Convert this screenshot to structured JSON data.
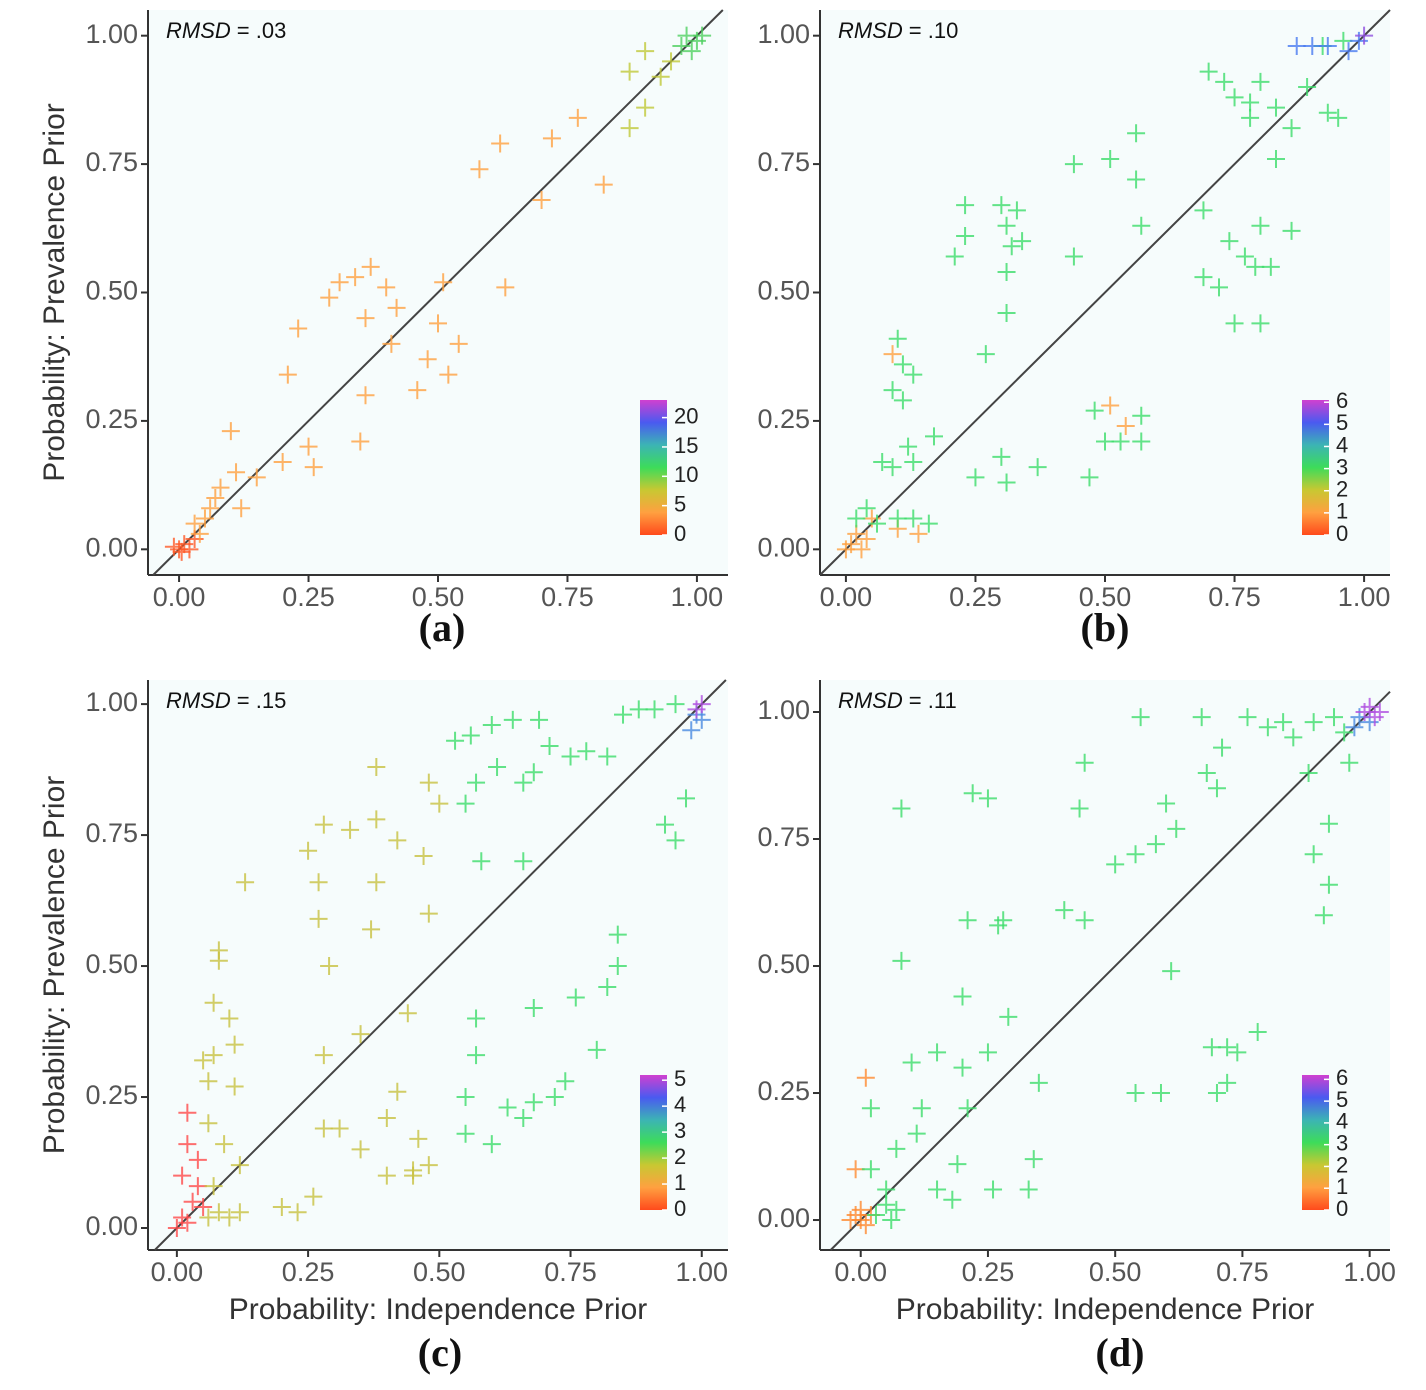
{
  "chart_data": [
    {
      "type": "scatter",
      "panel_label": "(a)",
      "annotation_var": "RMSD",
      "annotation": "= .03",
      "ylabel": "Probability: Prevalence Prior",
      "xlim": [
        -0.06,
        1.06
      ],
      "ylim": [
        -0.05,
        1.05
      ],
      "xticks": [
        {
          "value": 0,
          "label": "0.00"
        },
        {
          "value": 0.25,
          "label": "0.25"
        },
        {
          "value": 0.5,
          "label": "0.50"
        },
        {
          "value": 0.75,
          "label": "0.75"
        },
        {
          "value": 1,
          "label": "1.00"
        }
      ],
      "yticks": [
        {
          "value": 0,
          "label": "0.00"
        },
        {
          "value": 0.25,
          "label": "0.25"
        },
        {
          "value": 0.5,
          "label": "0.50"
        },
        {
          "value": 0.75,
          "label": "0.75"
        },
        {
          "value": 1,
          "label": "1.00"
        }
      ],
      "identity_line": true,
      "colorbar": {
        "lim": [
          0,
          23
        ],
        "ticks": [
          0,
          5,
          10,
          15,
          20
        ],
        "colors": [
          "#ff4a1c",
          "#ffa040",
          "#c8c832",
          "#3ddc5a",
          "#3cb4b4",
          "#4a5af0",
          "#d040d0"
        ]
      },
      "series": [
        {
          "color": "#ff5a28",
          "x": [
            0,
            0.01,
            -0.01,
            0.02,
            0.03,
            0.005
          ],
          "values": [
            0,
            0.01,
            0.005,
            0,
            0.02,
            -0.005
          ]
        },
        {
          "color": "#ffa040",
          "x": [
            0.04,
            0.05,
            0.06,
            0.07,
            0.03,
            0.08,
            0.1,
            0.11,
            0.12,
            0.15,
            0.21,
            0.23,
            0.2,
            0.25,
            0.26,
            0.29,
            0.31,
            0.34,
            0.37,
            0.4,
            0.36,
            0.42,
            0.41,
            0.36,
            0.35,
            0.46,
            0.48,
            0.51,
            0.5,
            0.54,
            0.52,
            0.58,
            0.62,
            0.63,
            0.7,
            0.72,
            0.77,
            0.82
          ],
          "values": [
            0.03,
            0.06,
            0.08,
            0.1,
            0.05,
            0.12,
            0.23,
            0.15,
            0.08,
            0.14,
            0.34,
            0.43,
            0.17,
            0.2,
            0.16,
            0.49,
            0.52,
            0.53,
            0.55,
            0.51,
            0.45,
            0.47,
            0.4,
            0.3,
            0.21,
            0.31,
            0.37,
            0.52,
            0.44,
            0.4,
            0.34,
            0.74,
            0.79,
            0.51,
            0.68,
            0.8,
            0.84,
            0.71
          ]
        },
        {
          "color": "#c0c838",
          "x": [
            0.87,
            0.87,
            0.9,
            0.93,
            0.95,
            0.9
          ],
          "values": [
            0.93,
            0.82,
            0.86,
            0.92,
            0.95,
            0.97
          ]
        },
        {
          "color": "#50d060",
          "x": [
            0.97,
            0.98,
            1,
            0.99,
            1.01
          ],
          "values": [
            0.98,
            1,
            0.99,
            0.97,
            1
          ]
        }
      ]
    },
    {
      "type": "scatter",
      "panel_label": "(b)",
      "annotation_var": "RMSD",
      "annotation": "= .10",
      "xlim": [
        -0.05,
        1.05
      ],
      "ylim": [
        -0.05,
        1.05
      ],
      "xticks": [
        {
          "value": 0,
          "label": "0.00"
        },
        {
          "value": 0.25,
          "label": "0.25"
        },
        {
          "value": 0.5,
          "label": "0.50"
        },
        {
          "value": 0.75,
          "label": "0.75"
        },
        {
          "value": 1,
          "label": "1.00"
        }
      ],
      "yticks": [
        {
          "value": 0,
          "label": "0.00"
        },
        {
          "value": 0.25,
          "label": "0.25"
        },
        {
          "value": 0.5,
          "label": "0.50"
        },
        {
          "value": 0.75,
          "label": "0.75"
        },
        {
          "value": 1,
          "label": "1.00"
        }
      ],
      "identity_line": true,
      "colorbar": {
        "lim": [
          0,
          6.1
        ],
        "ticks": [
          0,
          1,
          2,
          3,
          4,
          5,
          6
        ],
        "colors": [
          "#ff4a1c",
          "#ffa040",
          "#c8c832",
          "#3ddc5a",
          "#3cb4b4",
          "#4a5af0",
          "#d040d0"
        ]
      },
      "series": [
        {
          "color": "#ffa040",
          "x": [
            0,
            0.01,
            0.02,
            0.04,
            0.05,
            0.03,
            0.1,
            0.14,
            0.51,
            0.54,
            0.09
          ],
          "values": [
            0,
            0.01,
            0.03,
            0.02,
            0.06,
            0,
            0.04,
            0.03,
            0.28,
            0.24,
            0.38
          ]
        },
        {
          "color": "#3ddc6a",
          "x": [
            0.02,
            0.04,
            0.06,
            0.07,
            0.09,
            0.1,
            0.13,
            0.16,
            0.1,
            0.11,
            0.13,
            0.09,
            0.11,
            0.12,
            0.13,
            0.17,
            0.21,
            0.23,
            0.23,
            0.27,
            0.25,
            0.3,
            0.31,
            0.32,
            0.34,
            0.31,
            0.33,
            0.31,
            0.3,
            0.31,
            0.37,
            0.44,
            0.44,
            0.48,
            0.47,
            0.5,
            0.51,
            0.53,
            0.56,
            0.56,
            0.57,
            0.57,
            0.57,
            0.69,
            0.7,
            0.73,
            0.75,
            0.78,
            0.8,
            0.74,
            0.77,
            0.79,
            0.82,
            0.8,
            0.75,
            0.8,
            0.69,
            0.72,
            0.86,
            0.83,
            0.86,
            0.89,
            0.93,
            0.95,
            0.92,
            0.96,
            0.78,
            0.83
          ],
          "values": [
            0.06,
            0.08,
            0.05,
            0.17,
            0.16,
            0.06,
            0.06,
            0.05,
            0.41,
            0.36,
            0.34,
            0.31,
            0.29,
            0.2,
            0.17,
            0.22,
            0.57,
            0.61,
            0.67,
            0.38,
            0.14,
            0.67,
            0.63,
            0.59,
            0.6,
            0.54,
            0.66,
            0.46,
            0.18,
            0.13,
            0.16,
            0.75,
            0.57,
            0.27,
            0.14,
            0.21,
            0.76,
            0.21,
            0.81,
            0.72,
            0.63,
            0.26,
            0.21,
            0.66,
            0.93,
            0.91,
            0.88,
            0.87,
            0.91,
            0.6,
            0.57,
            0.55,
            0.55,
            0.63,
            0.44,
            0.44,
            0.53,
            0.51,
            0.62,
            0.76,
            0.82,
            0.9,
            0.85,
            0.84,
            0.98,
            0.99,
            0.84,
            0.86
          ]
        },
        {
          "color": "#4a7af0",
          "x": [
            0.87,
            0.9,
            0.93,
            0.97,
            0.99
          ],
          "values": [
            0.98,
            0.98,
            0.98,
            0.97,
            0.99
          ]
        },
        {
          "color": "#9050e0",
          "x": [
            1
          ],
          "values": [
            1
          ]
        }
      ]
    },
    {
      "type": "scatter",
      "panel_label": "(c)",
      "annotation_var": "RMSD",
      "annotation": "= .15",
      "xlabel": "Probability: Independence Prior",
      "ylabel": "Probability: Prevalence Prior",
      "xlim": [
        -0.055,
        1.05
      ],
      "ylim": [
        -0.042,
        1.046
      ],
      "xticks": [
        {
          "value": 0,
          "label": "0.00"
        },
        {
          "value": 0.25,
          "label": "0.25"
        },
        {
          "value": 0.5,
          "label": "0.50"
        },
        {
          "value": 0.75,
          "label": "0.75"
        },
        {
          "value": 1,
          "label": "1.00"
        }
      ],
      "yticks": [
        {
          "value": 0,
          "label": "0.00"
        },
        {
          "value": 0.25,
          "label": "0.25"
        },
        {
          "value": 0.5,
          "label": "0.50"
        },
        {
          "value": 0.75,
          "label": "0.75"
        },
        {
          "value": 1,
          "label": "1.00"
        }
      ],
      "identity_line": true,
      "colorbar": {
        "lim": [
          0,
          5.2
        ],
        "ticks": [
          0,
          1,
          2,
          3,
          4,
          5
        ],
        "colors": [
          "#ff4a1c",
          "#ffa040",
          "#c8c832",
          "#3ddc5a",
          "#3cb4b4",
          "#4a5af0",
          "#d040d0"
        ]
      },
      "series": [
        {
          "color": "#ff4a4a",
          "x": [
            0,
            0.01,
            0.02,
            0.03,
            0.01,
            0.02,
            0.04,
            0.02,
            0.04,
            0.05
          ],
          "values": [
            0,
            0.02,
            0.01,
            0.05,
            0.1,
            0.16,
            0.13,
            0.22,
            0.08,
            0.04
          ]
        },
        {
          "color": "#c8c040",
          "x": [
            0.06,
            0.08,
            0.1,
            0.12,
            0.07,
            0.06,
            0.06,
            0.05,
            0.07,
            0.07,
            0.08,
            0.08,
            0.1,
            0.11,
            0.11,
            0.09,
            0.12,
            0.13,
            0.2,
            0.26,
            0.25,
            0.27,
            0.27,
            0.28,
            0.29,
            0.28,
            0.28,
            0.31,
            0.33,
            0.35,
            0.38,
            0.38,
            0.37,
            0.38,
            0.4,
            0.35,
            0.42,
            0.42,
            0.44,
            0.45,
            0.46,
            0.47,
            0.48,
            0.48,
            0.48,
            0.5,
            0.45,
            0.4,
            0.23
          ],
          "values": [
            0.02,
            0.03,
            0.02,
            0.03,
            0.08,
            0.2,
            0.28,
            0.32,
            0.33,
            0.43,
            0.51,
            0.53,
            0.4,
            0.35,
            0.27,
            0.16,
            0.12,
            0.66,
            0.04,
            0.06,
            0.72,
            0.59,
            0.66,
            0.77,
            0.5,
            0.33,
            0.19,
            0.19,
            0.76,
            0.15,
            0.88,
            0.78,
            0.57,
            0.66,
            0.1,
            0.37,
            0.74,
            0.26,
            0.41,
            0.1,
            0.17,
            0.71,
            0.6,
            0.12,
            0.85,
            0.81,
            0.11,
            0.21,
            0.03
          ]
        },
        {
          "color": "#3ddc6a",
          "x": [
            0.53,
            0.56,
            0.57,
            0.58,
            0.55,
            0.6,
            0.64,
            0.69,
            0.71,
            0.75,
            0.78,
            0.82,
            0.85,
            0.88,
            0.91,
            0.95,
            0.55,
            0.55,
            0.57,
            0.57,
            0.6,
            0.63,
            0.66,
            0.68,
            0.66,
            0.68,
            0.72,
            0.74,
            0.76,
            0.8,
            0.82,
            0.84,
            0.84,
            0.93,
            0.95,
            0.97,
            0.68,
            0.61,
            0.66
          ],
          "values": [
            0.93,
            0.94,
            0.85,
            0.7,
            0.81,
            0.96,
            0.97,
            0.97,
            0.92,
            0.9,
            0.91,
            0.9,
            0.98,
            0.99,
            0.99,
            1,
            0.25,
            0.18,
            0.4,
            0.33,
            0.16,
            0.23,
            0.21,
            0.24,
            0.7,
            0.42,
            0.25,
            0.28,
            0.44,
            0.34,
            0.46,
            0.5,
            0.56,
            0.77,
            0.74,
            0.82,
            0.87,
            0.88,
            0.85
          ]
        },
        {
          "color": "#4a8ae0",
          "x": [
            0.98,
            0.99,
            1
          ],
          "values": [
            0.95,
            0.98,
            0.97
          ]
        },
        {
          "color": "#b050e0",
          "x": [
            1,
            0.99
          ],
          "values": [
            1,
            0.99
          ]
        }
      ]
    },
    {
      "type": "scatter",
      "panel_label": "(d)",
      "annotation_var": "RMSD",
      "annotation": "= .11",
      "xlabel": "Probability: Independence Prior",
      "xlim": [
        -0.08,
        1.04
      ],
      "ylim": [
        -0.059,
        1.063
      ],
      "xticks": [
        {
          "value": 0,
          "label": "0.00"
        },
        {
          "value": 0.25,
          "label": "0.25"
        },
        {
          "value": 0.5,
          "label": "0.50"
        },
        {
          "value": 0.75,
          "label": "0.75"
        },
        {
          "value": 1,
          "label": "1.00"
        }
      ],
      "yticks": [
        {
          "value": 0,
          "label": "0.00"
        },
        {
          "value": 0.25,
          "label": "0.25"
        },
        {
          "value": 0.5,
          "label": "0.50"
        },
        {
          "value": 0.75,
          "label": "0.75"
        },
        {
          "value": 1,
          "label": "1.00"
        }
      ],
      "identity_line": true,
      "colorbar": {
        "lim": [
          0,
          6.2
        ],
        "ticks": [
          0,
          1,
          2,
          3,
          4,
          5,
          6
        ],
        "colors": [
          "#ff4a1c",
          "#ffa040",
          "#c8c832",
          "#3ddc5a",
          "#3cb4b4",
          "#4a5af0",
          "#d040d0"
        ]
      },
      "series": [
        {
          "color": "#ff8a30",
          "x": [
            0,
            -0.01,
            0.01,
            0.02,
            0,
            -0.02,
            0.01,
            -0.01
          ],
          "values": [
            0,
            0.01,
            -0.01,
            0.01,
            0.02,
            0,
            0.28,
            0.1
          ]
        },
        {
          "color": "#3ddc6a",
          "x": [
            0.03,
            0.05,
            0.06,
            0.07,
            0.02,
            0.05,
            0.02,
            0.07,
            0.08,
            0.08,
            0.1,
            0.11,
            0.12,
            0.15,
            0.15,
            0.18,
            0.19,
            0.2,
            0.2,
            0.21,
            0.21,
            0.22,
            0.25,
            0.26,
            0.25,
            0.27,
            0.28,
            0.29,
            0.33,
            0.34,
            0.35,
            0.4,
            0.43,
            0.44,
            0.44,
            0.5,
            0.54,
            0.54,
            0.55,
            0.58,
            0.6,
            0.61,
            0.62,
            0.67,
            0.68,
            0.7,
            0.71,
            0.69,
            0.72,
            0.74,
            0.7,
            0.72,
            0.78,
            0.76,
            0.8,
            0.83,
            0.85,
            0.88,
            0.89,
            0.91,
            0.92,
            0.92,
            0.89,
            0.93,
            0.95,
            0.96,
            0.59
          ],
          "values": [
            0.01,
            0.03,
            0,
            0.02,
            0.1,
            0.06,
            0.22,
            0.14,
            0.51,
            0.81,
            0.31,
            0.17,
            0.22,
            0.33,
            0.06,
            0.04,
            0.11,
            0.3,
            0.44,
            0.59,
            0.22,
            0.84,
            0.33,
            0.06,
            0.83,
            0.58,
            0.59,
            0.4,
            0.06,
            0.12,
            0.27,
            0.61,
            0.81,
            0.9,
            0.59,
            0.7,
            0.72,
            0.25,
            0.99,
            0.74,
            0.82,
            0.49,
            0.77,
            0.99,
            0.88,
            0.85,
            0.93,
            0.34,
            0.34,
            0.33,
            0.25,
            0.27,
            0.37,
            0.99,
            0.97,
            0.98,
            0.95,
            0.88,
            0.72,
            0.6,
            0.66,
            0.78,
            0.98,
            0.99,
            0.96,
            0.9,
            0.25
          ]
        },
        {
          "color": "#4a8ae0",
          "x": [
            0.97,
            0.98,
            1
          ],
          "values": [
            0.97,
            0.99,
            0.98
          ]
        },
        {
          "color": "#b050e0",
          "x": [
            0.99,
            1,
            1.01,
            1.02
          ],
          "values": [
            1,
            1.01,
            0.99,
            1
          ]
        }
      ]
    }
  ]
}
